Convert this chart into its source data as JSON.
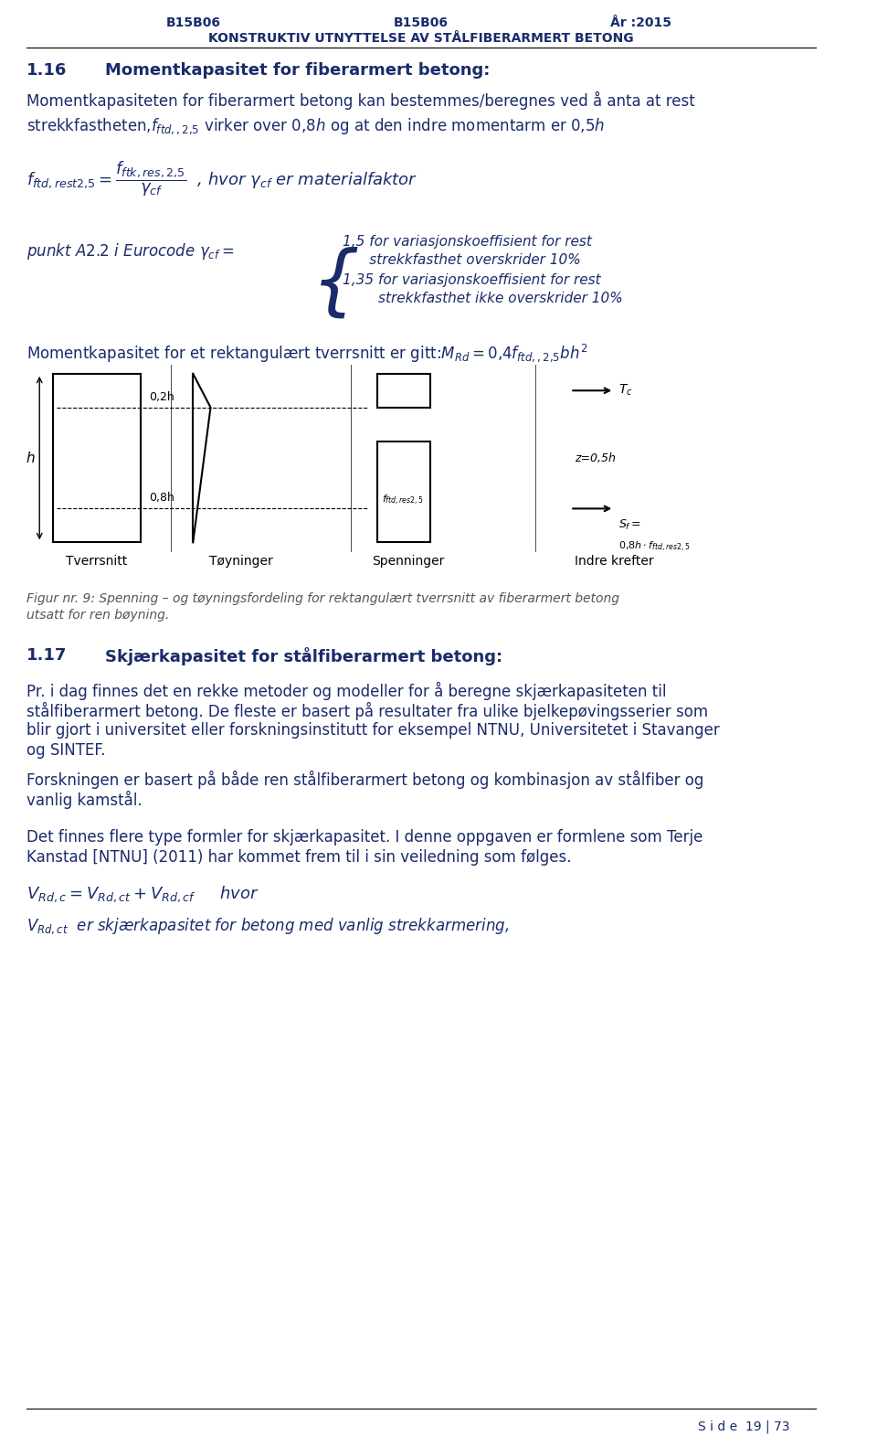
{
  "header_left": "B15B06",
  "header_right": "År :2015",
  "header_center": "KONSTRUKTIV UTNYTTELSE AV STÅLFIBERARMERT BETONG",
  "section_num": "1.16",
  "section_title": "Momentkapasitet for fiberarmert betong:",
  "body1": "Momentkapasiteten for fiberarmert betong kan bestemmes/beregnes ved å anta at rest",
  "body2": "strekkfastheten,",
  "body2_math": "f_{ftd,,2,5}",
  "body2_rest": " virker over 0,8h og at den indre momentarm er 0,5h",
  "formula_line": "f_{ftd,rest2,5} = \\frac{f_{ftk,res,2,5}}{\\gamma_{cf}}  , hvor  \\gamma_{cf}  er materialfaktor",
  "punkt_line": "punkt A2.2 i Eurocode \\gamma_{cf} =",
  "brace_line1": "1,5 for variasjonskoeffisient for rest",
  "brace_line2": "strekkfasthet overskrider 10%",
  "brace_line3": "1,35 for variasjonskoeffisient for rest",
  "brace_line4": "strekkfasthet ikke overskrider 10%",
  "moment_line": "Momentkapasitet for et rektangulært tverrsnitt er gitt:",
  "moment_formula": "M_{Rd} = 0,4f_{ftd,,2,5}bh^2",
  "fig_caption": "Figur nr. 9: Spenning – og tøyningsfordeling for rektangulært tverrsnitt av fiberarmert betong",
  "fig_caption2": "utsatt for ren bøyning.",
  "section2_num": "1.17",
  "section2_title": "Skjærkapasitet for stålfiberarmert betong:",
  "s2_body1": "Pr. i dag finnes det en rekke metoder og modeller for å beregne skjærkapasiteten til",
  "s2_body2": "stålfiberarmert betong. De fleste er basert på resultater fra ulike bjelkepøvingsserier som",
  "s2_body3": "blir gjort i universitet eller forskningsinstitutt for eksempel NTNU, Universitetet i Stavanger",
  "s2_body4": "og SINTEF.",
  "s2_body5": "Forskningen er basert på både ren stålfiberarmert betong og kombinasjon av stålfiber og",
  "s2_body6": "vanlig kamstål.",
  "s2_body7": "Det finnes flere type formler for skjærkapasitet. I denne oppgaven er formlene som Terje",
  "s2_body8": "Kanstad [NTNU] (2011) har kommet frem til i sin veiledning som følges.",
  "formula2_line": "V_{Rd,c} = V_{Rd,ct} + V_{Rd,cf}     hvor",
  "formula2_sub": "V_{Rd,ct}  er skjærkapasitet for betong med vanlig strekkarmering,",
  "page_footer": "S i d e  19 | 73",
  "dark_blue": "#1a2b6b",
  "gray_text": "#808080",
  "black": "#000000",
  "italic_gray": "#888888"
}
